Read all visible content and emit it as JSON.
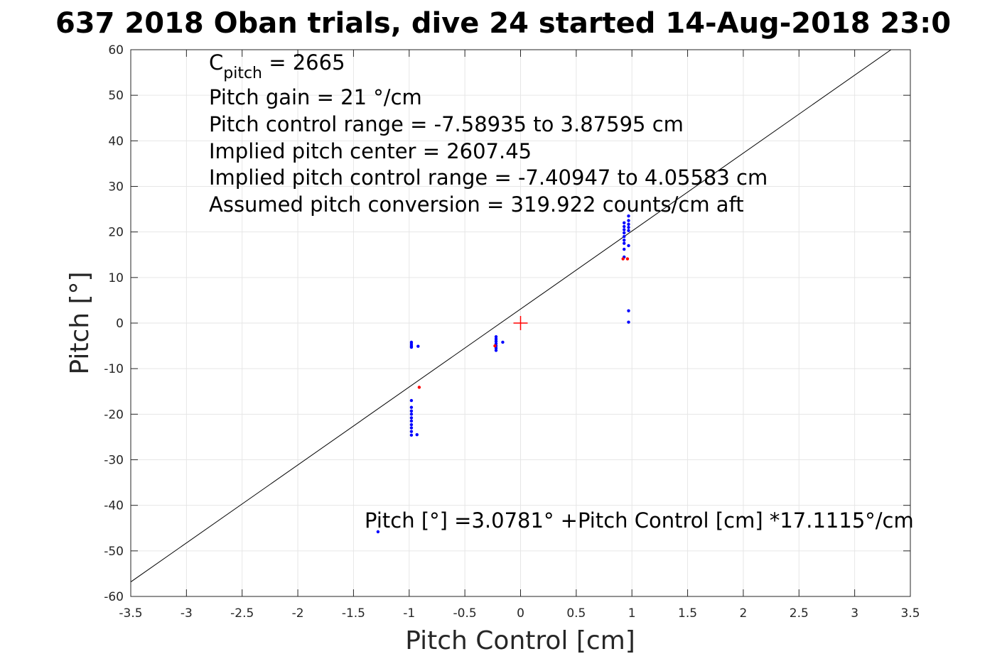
{
  "chart_data": {
    "type": "scatter",
    "title": "637 2018 Oban trials, dive 24 started 14-Aug-2018 23:0",
    "xlabel": "Pitch Control [cm]",
    "ylabel": "Pitch [°]",
    "xlim": [
      -3.5,
      3.5
    ],
    "ylim": [
      -60,
      60
    ],
    "grid": true,
    "x_ticks": [
      -3.5,
      -3,
      -2.5,
      -2,
      -1.5,
      -1,
      -0.5,
      0,
      0.5,
      1,
      1.5,
      2,
      2.5,
      3,
      3.5
    ],
    "x_tick_labels": [
      "-3.5",
      "-3",
      "-2.5",
      "-2",
      "-1.5",
      "-1",
      "-0.5",
      "0",
      "0.5",
      "1",
      "1.5",
      "2",
      "2.5",
      "3",
      "3.5"
    ],
    "y_ticks": [
      -60,
      -50,
      -40,
      -30,
      -20,
      -10,
      0,
      10,
      20,
      30,
      40,
      50,
      60
    ],
    "y_tick_labels": [
      "-60",
      "-50",
      "-40",
      "-30",
      "-20",
      "-10",
      "0",
      "10",
      "20",
      "30",
      "40",
      "50",
      "60"
    ],
    "annotations": [
      {
        "main": "C",
        "sub": "pitch",
        "rest": " = 2665"
      },
      {
        "main": "Pitch gain = 21 °/cm"
      },
      {
        "main": "Pitch control range = -7.58935 to 3.87595 cm"
      },
      {
        "main": "Implied pitch center = 2607.45"
      },
      {
        "main": "Implied pitch control range = -7.40947 to 4.05583 cm"
      },
      {
        "main": "Assumed pitch conversion = 319.922 counts/cm aft"
      }
    ],
    "fit_label": "Pitch [°] =3.0781° +Pitch Control [cm] *17.1115°/cm",
    "fit_line": {
      "intercept": 3.0781,
      "slope": 17.1115,
      "color": "#000000"
    },
    "center_marker": {
      "x": 0,
      "y": 0,
      "color": "#ff0000"
    },
    "series": [
      {
        "color": "#0000ff",
        "points": [
          [
            -0.98,
            -4.2
          ],
          [
            -0.98,
            -4.6
          ],
          [
            -0.98,
            -5.0
          ],
          [
            -0.98,
            -5.3
          ],
          [
            -0.92,
            -5.1
          ],
          [
            -0.98,
            -17.0
          ],
          [
            -0.98,
            -18.5
          ],
          [
            -0.98,
            -19.3
          ],
          [
            -0.98,
            -20.0
          ],
          [
            -0.98,
            -20.8
          ],
          [
            -0.98,
            -21.5
          ],
          [
            -0.98,
            -22.3
          ],
          [
            -0.98,
            -23.0
          ],
          [
            -0.98,
            -23.8
          ],
          [
            -0.98,
            -24.6
          ],
          [
            -0.93,
            -24.5
          ],
          [
            -0.22,
            -3.0
          ],
          [
            -0.22,
            -3.5
          ],
          [
            -0.22,
            -4.0
          ],
          [
            -0.22,
            -4.5
          ],
          [
            -0.22,
            -5.0
          ],
          [
            -0.22,
            -5.5
          ],
          [
            -0.22,
            -6.0
          ],
          [
            -0.16,
            -4.2
          ],
          [
            0.93,
            22.0
          ],
          [
            0.93,
            21.2
          ],
          [
            0.93,
            20.5
          ],
          [
            0.93,
            19.8
          ],
          [
            0.93,
            19.0
          ],
          [
            0.93,
            18.2
          ],
          [
            0.93,
            17.5
          ],
          [
            0.93,
            16.2
          ],
          [
            0.93,
            14.5
          ],
          [
            0.97,
            23.5
          ],
          [
            0.97,
            22.5
          ],
          [
            0.97,
            21.7
          ],
          [
            0.97,
            21.0
          ],
          [
            0.97,
            20.3
          ],
          [
            0.97,
            17.0
          ],
          [
            0.97,
            2.7
          ],
          [
            0.97,
            0.2
          ],
          [
            -1.28,
            -45.8
          ]
        ]
      },
      {
        "color": "#ff0000",
        "points": [
          [
            -0.91,
            -14.1
          ],
          [
            -0.23,
            -5.0
          ],
          [
            0.92,
            14.1
          ],
          [
            0.96,
            14.1
          ]
        ]
      }
    ]
  }
}
